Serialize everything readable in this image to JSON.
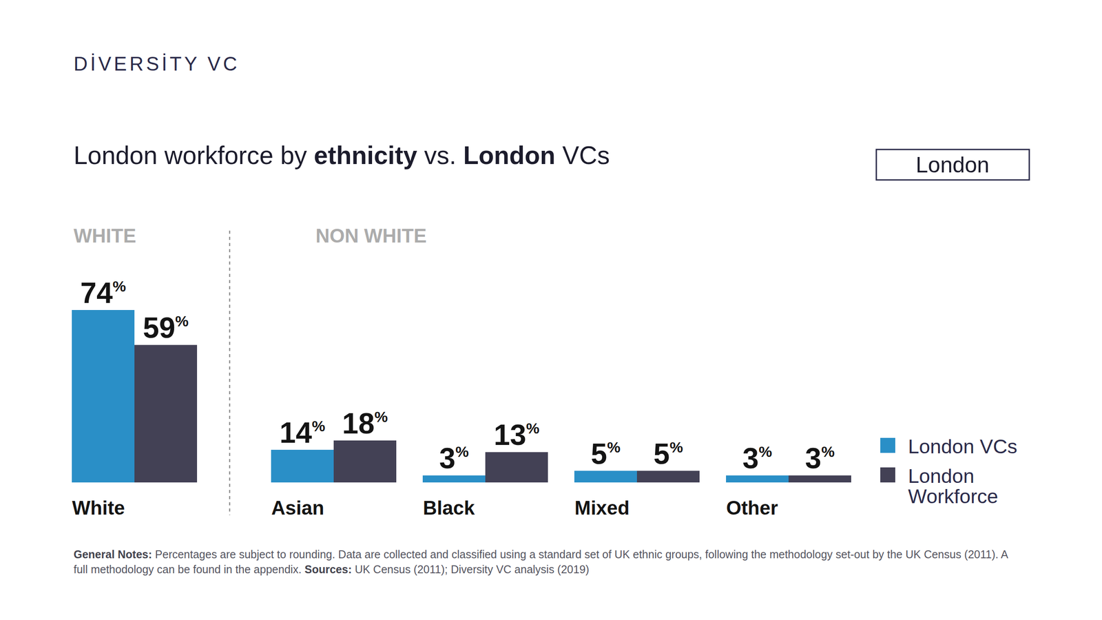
{
  "chart_data": {
    "type": "bar",
    "brand": "DİVERSİTY VC",
    "title": "London workforce by ethnicity vs. London VCs",
    "badge": "London",
    "group_labels": [
      "WHITE",
      "NON WHITE"
    ],
    "categories": [
      "White",
      "Asian",
      "Black",
      "Mixed",
      "Other"
    ],
    "series": [
      {
        "name": "London VCs",
        "color": "#2a8fc7",
        "values": [
          74,
          14,
          3,
          5,
          3
        ],
        "value_labels": [
          "74%",
          "14%",
          "3%",
          "5%",
          "3%"
        ]
      },
      {
        "name": "London Workforce",
        "color": "#434155",
        "values": [
          59,
          18,
          13,
          5,
          3
        ],
        "value_labels": [
          "59%",
          "18%",
          "13%",
          "5%",
          "3%"
        ]
      }
    ],
    "ylim": [
      0,
      74
    ],
    "tick_labels": false,
    "data_labels": true,
    "legend": "right",
    "notes": [
      {
        "label": "General Notes:",
        "text": "Percentages are subject to rounding. Data are collected and classified using a standard set of UK ethnic groups, following the methodology set-out by the UK Census (2011).  A full methodology can be found in the appendix."
      },
      {
        "label": "Sources:",
        "text": "UK Census (2011); Diversity VC analysis (2019)"
      }
    ]
  }
}
